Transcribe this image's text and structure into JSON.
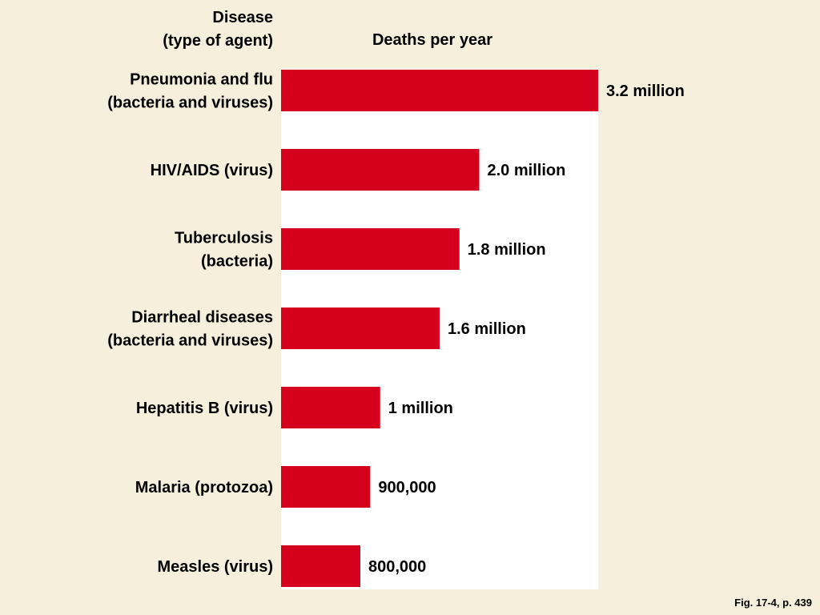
{
  "header": {
    "disease_line1": "Disease",
    "disease_line2": "(type of agent)",
    "deaths": "Deaths per year"
  },
  "footer": {
    "figure_ref": "Fig. 17-4, p. 439"
  },
  "colors": {
    "background": "#f5efdc",
    "plot_background": "#ffffff",
    "bar": "#d5001c"
  },
  "chart_data": {
    "type": "bar",
    "orientation": "horizontal",
    "title": "",
    "xlabel": "Deaths per year",
    "ylabel": "Disease (type of agent)",
    "xlim": [
      0,
      3200000
    ],
    "grid": false,
    "legend": "none",
    "categories": [
      [
        "Pneumonia and flu",
        "(bacteria and viruses)"
      ],
      [
        "HIV/AIDS (virus)"
      ],
      [
        "Tuberculosis",
        "(bacteria)"
      ],
      [
        "Diarrheal diseases",
        "(bacteria and viruses)"
      ],
      [
        "Hepatitis B (virus)"
      ],
      [
        "Malaria (protozoa)"
      ],
      [
        "Measles (virus)"
      ]
    ],
    "values": [
      3200000,
      2000000,
      1800000,
      1600000,
      1000000,
      900000,
      800000
    ],
    "value_labels": [
      "3.2 million",
      "2.0 million",
      "1.8 million",
      "1.6 million",
      "1 million",
      "900,000",
      "800,000"
    ]
  }
}
